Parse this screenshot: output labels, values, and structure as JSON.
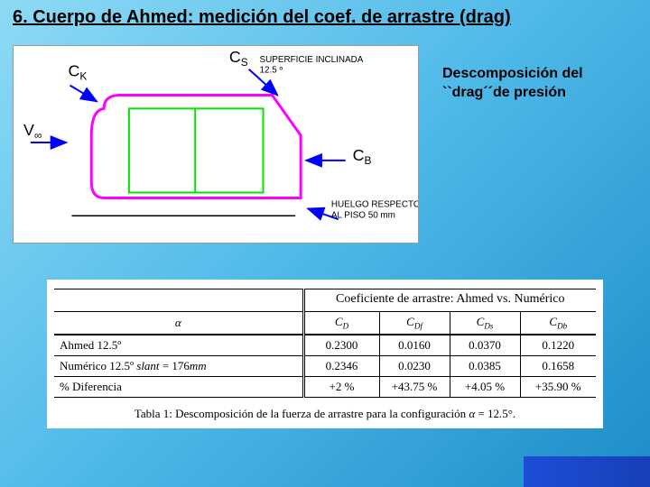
{
  "title": "6. Cuerpo de Ahmed: medición del coef. de arrastre (drag)",
  "caption_line1": "Descomposición del",
  "caption_line2": "``drag´´de presión",
  "diagram": {
    "labels": {
      "ck": "C",
      "ck_sub": "K",
      "cs": "C",
      "cs_sub": "S",
      "cs_desc1": "SUPERFICIE INCLINADA",
      "cs_desc2": "12.5 º",
      "cb": "C",
      "cb_sub": "B",
      "vinf": "V",
      "vinf_sub": "∞",
      "huelgo1": "HUELGO RESPECTO",
      "huelgo2": "AL PISO 50 mm"
    },
    "colors": {
      "body_stroke": "#ff00ff",
      "inner_stroke": "#00e400",
      "arrow_stroke": "#0000ff",
      "text": "#000000",
      "ground": "#000000"
    }
  },
  "table": {
    "title": "Coeficiente de arrastre: Ahmed vs. Numérico",
    "header": {
      "alpha": "α",
      "cd": "C",
      "cd_sub": "D",
      "cdf": "C",
      "cdf_sub": "Df",
      "cds": "C",
      "cds_sub": "Ds",
      "cdb": "C",
      "cdb_sub": "Db"
    },
    "rows": [
      {
        "label_html": "Ahmed 12.5º",
        "cd": "0.2300",
        "cdf": "0.0160",
        "cds": "0.0370",
        "cdb": "0.1220"
      },
      {
        "label_html": "Numérico 12.5º <span class=\"ital\">slant</span> = 176<span class=\"ital\">mm</span>",
        "cd": "0.2346",
        "cdf": "0.0230",
        "cds": "0.0385",
        "cdb": "0.1658"
      },
      {
        "label_html": "% Diferencia",
        "cd": "+2 %",
        "cdf": "+43.75 %",
        "cds": "+4.05 %",
        "cdb": "+35.90 %"
      }
    ],
    "caption_html": "Tabla 1: Descomposición de la fuerza de arrastre para la configuración <span class=\"ital\">α</span> = 12<span class=\"ital\">.</span>5°."
  }
}
